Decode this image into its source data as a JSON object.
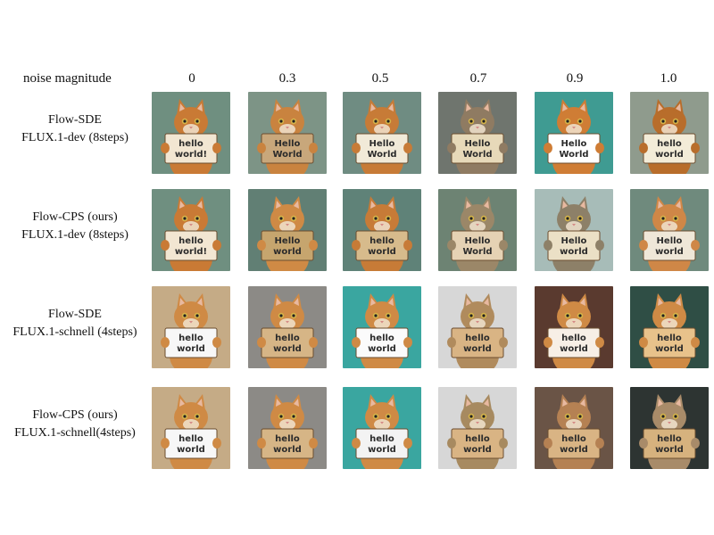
{
  "header": {
    "label": "noise magnitude",
    "columns": [
      "0",
      "0.3",
      "0.5",
      "0.7",
      "0.9",
      "1.0"
    ]
  },
  "rows": [
    {
      "label": "Flow-SDE\nFLUX.1-dev (8steps)",
      "cells": [
        {
          "bg": "#6f8f80",
          "cat": "#c97a35",
          "sign": "#f2e6d2",
          "signText": "hello\nworld!"
        },
        {
          "bg": "#7d9486",
          "cat": "#c9833f",
          "sign": "#c8a77b",
          "signText": "Hello\nWorld"
        },
        {
          "bg": "#6f8c82",
          "cat": "#c77b37",
          "sign": "#f1ead8",
          "signText": "Hello\nWorld"
        },
        {
          "bg": "#6f756e",
          "cat": "#8f7b62",
          "sign": "#e7d9b9",
          "signText": "Hello\nWorld"
        },
        {
          "bg": "#3f9b92",
          "cat": "#cf7d35",
          "sign": "#ffffff",
          "signText": "Hello\nWorld"
        },
        {
          "bg": "#8f9b8d",
          "cat": "#b86d2b",
          "sign": "#f3ecd8",
          "signText": "hello\nworld"
        }
      ]
    },
    {
      "label": "Flow-CPS (ours)\nFLUX.1-dev (8steps)",
      "cells": [
        {
          "bg": "#6f8f80",
          "cat": "#c97a35",
          "sign": "#f2e6d2",
          "signText": "hello\nworld!"
        },
        {
          "bg": "#617f74",
          "cat": "#cf8a45",
          "sign": "#c6a56e",
          "signText": "Hello\nworld"
        },
        {
          "bg": "#5f8278",
          "cat": "#c77b37",
          "sign": "#d7bb8c",
          "signText": "hello\nworld"
        },
        {
          "bg": "#6d8373",
          "cat": "#9b8768",
          "sign": "#e5d2b4",
          "signText": "Hello\nWorld"
        },
        {
          "bg": "#a7bcb8",
          "cat": "#8d8068",
          "sign": "#ebe0c6",
          "signText": "Hello\nworld"
        },
        {
          "bg": "#6f8a7d",
          "cat": "#cf8747",
          "sign": "#efe7d8",
          "signText": "Hello\nworld"
        }
      ]
    },
    {
      "label": "Flow-SDE\nFLUX.1-schnell (4steps)",
      "cells": [
        {
          "bg": "#c5ab86",
          "cat": "#cf8a45",
          "sign": "#f7f7f7",
          "signText": "hello\nworld"
        },
        {
          "bg": "#8c8a86",
          "cat": "#cf8a45",
          "sign": "#d6b586",
          "signText": "hello\nworld"
        },
        {
          "bg": "#3aa6a0",
          "cat": "#cf8a45",
          "sign": "#fbfbfb",
          "signText": "hello\nworld"
        },
        {
          "bg": "#d7d7d7",
          "cat": "#b08b5d",
          "sign": "#d9b484",
          "signText": "hello\nworld"
        },
        {
          "bg": "#5a3a2f",
          "cat": "#cf8a45",
          "sign": "#f7efe6",
          "signText": "hello\nworld"
        },
        {
          "bg": "#2f4e45",
          "cat": "#cf8a45",
          "sign": "#e8c28b",
          "signText": "hello\nworld"
        }
      ]
    },
    {
      "label": "Flow-CPS (ours)\nFLUX.1-schnell(4steps)",
      "cells": [
        {
          "bg": "#c5ab86",
          "cat": "#cf8a45",
          "sign": "#f7f7f7",
          "signText": "hello\nworld"
        },
        {
          "bg": "#8c8a86",
          "cat": "#cf8a45",
          "sign": "#d6b586",
          "signText": "hello\nworld"
        },
        {
          "bg": "#3aa6a0",
          "cat": "#cf8a45",
          "sign": "#f3f3f3",
          "signText": "hello\nworld"
        },
        {
          "bg": "#d7d7d7",
          "cat": "#a78a60",
          "sign": "#d9b484",
          "signText": "hello\nworld"
        },
        {
          "bg": "#6a5446",
          "cat": "#b58153",
          "sign": "#d9b484",
          "signText": "hello\nworld"
        },
        {
          "bg": "#2d3432",
          "cat": "#a88b69",
          "sign": "#d6b27e",
          "signText": "hello\nworld"
        }
      ]
    }
  ]
}
